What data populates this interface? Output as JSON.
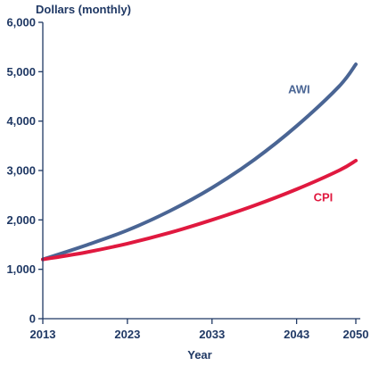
{
  "chart_data": {
    "type": "line",
    "ylabel": "Dollars (monthly)",
    "xlabel": "Year",
    "xlim": [
      2013,
      2050
    ],
    "ylim": [
      0,
      6000
    ],
    "x_ticks": [
      2013,
      2023,
      2033,
      2043,
      2050
    ],
    "x_tick_labels": [
      "2013",
      "2023",
      "2033",
      "2043",
      "2050"
    ],
    "y_ticks": [
      0,
      1000,
      2000,
      3000,
      4000,
      5000,
      6000
    ],
    "y_tick_labels": [
      "0",
      "1,000",
      "2,000",
      "3,000",
      "4,000",
      "5,000",
      "6,000"
    ],
    "grid": false,
    "series": [
      {
        "name": "AWI",
        "color": "#4a6594",
        "x": [
          2013,
          2018,
          2023,
          2028,
          2033,
          2038,
          2043,
          2048,
          2050
        ],
        "values": [
          1200,
          1480,
          1790,
          2180,
          2650,
          3220,
          3900,
          4700,
          5150
        ]
      },
      {
        "name": "CPI",
        "color": "#e0193f",
        "x": [
          2013,
          2018,
          2023,
          2028,
          2033,
          2038,
          2043,
          2048,
          2050
        ],
        "values": [
          1200,
          1340,
          1520,
          1740,
          2000,
          2290,
          2620,
          3000,
          3200
        ]
      }
    ],
    "annotations": [
      {
        "text": "AWI",
        "series": "AWI",
        "x": 2042,
        "y": 4560
      },
      {
        "text": "CPI",
        "series": "CPI",
        "x": 2045,
        "y": 2380
      }
    ]
  }
}
